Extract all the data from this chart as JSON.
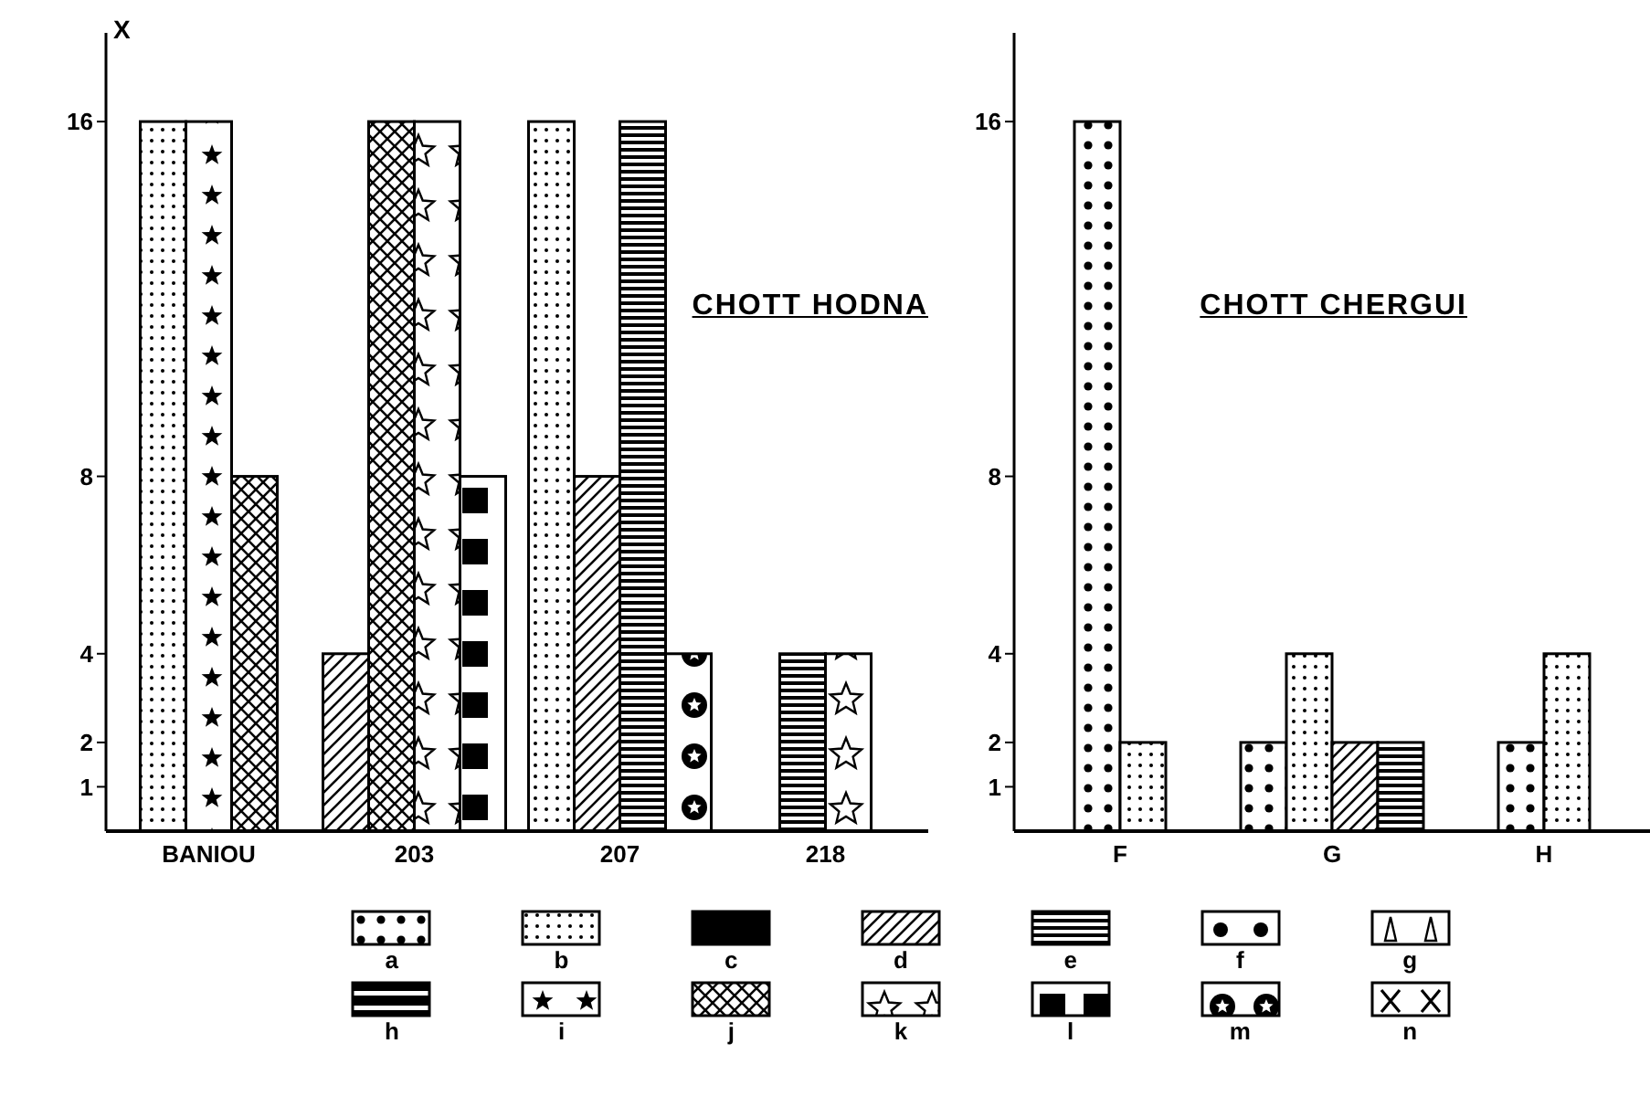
{
  "chart_data": [
    {
      "type": "bar",
      "title": "CHOTT HODNA",
      "ylabel": "X",
      "categories": [
        "BANIOU",
        "203",
        "207",
        "218"
      ],
      "ylim": [
        0,
        18
      ],
      "yticks": [
        1,
        2,
        4,
        8,
        16
      ],
      "legend": "bottom",
      "series": [
        {
          "name": "a",
          "color": "#000000",
          "values": [
            null,
            null,
            null,
            null
          ]
        },
        {
          "name": "b",
          "color": "#000000",
          "values": [
            16,
            null,
            16,
            null
          ]
        },
        {
          "name": "c",
          "color": "#000000",
          "values": [
            null,
            null,
            null,
            null
          ]
        },
        {
          "name": "d",
          "color": "#000000",
          "values": [
            null,
            4,
            8,
            null
          ]
        },
        {
          "name": "e",
          "color": "#000000",
          "values": [
            null,
            null,
            16,
            4
          ]
        },
        {
          "name": "f",
          "color": "#000000",
          "values": [
            null,
            null,
            null,
            null
          ]
        },
        {
          "name": "g",
          "color": "#000000",
          "values": [
            null,
            null,
            null,
            null
          ]
        },
        {
          "name": "h",
          "color": "#000000",
          "values": [
            null,
            null,
            null,
            null
          ]
        },
        {
          "name": "i",
          "color": "#000000",
          "values": [
            16,
            null,
            null,
            null
          ]
        },
        {
          "name": "j",
          "color": "#000000",
          "values": [
            8,
            16,
            null,
            null
          ]
        },
        {
          "name": "k",
          "color": "#000000",
          "values": [
            null,
            16,
            null,
            4
          ]
        },
        {
          "name": "l",
          "color": "#000000",
          "values": [
            null,
            8,
            null,
            null
          ]
        },
        {
          "name": "m",
          "color": "#000000",
          "values": [
            null,
            null,
            4,
            null
          ]
        },
        {
          "name": "n",
          "color": "#000000",
          "values": [
            null,
            null,
            null,
            null
          ]
        }
      ]
    },
    {
      "type": "bar",
      "title": "CHOTT CHERGUI",
      "categories": [
        "F",
        "G",
        "H"
      ],
      "ylim": [
        0,
        18
      ],
      "yticks": [
        1,
        2,
        4,
        8,
        16
      ],
      "series": [
        {
          "color": "#000000",
          "values": [
            16,
            2,
            2
          ]
        },
        {
          "color": "#000000",
          "values": [
            2,
            4,
            4
          ]
        },
        {
          "color": "#000000",
          "values": [
            null,
            null,
            null
          ]
        },
        {
          "color": "#000000",
          "values": [
            null,
            2,
            null
          ]
        },
        {
          "color": "#000000",
          "values": [
            null,
            2,
            null
          ]
        }
      ]
    }
  ]
}
